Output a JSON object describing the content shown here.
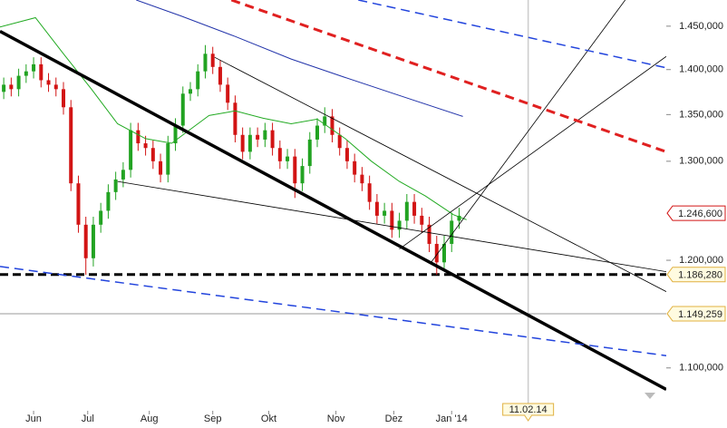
{
  "chart_data": {
    "type": "candlestick",
    "log_scale": true,
    "xlim": [
      -18,
      339
    ],
    "ylim": [
      1061,
      1481
    ],
    "xticks": [
      {
        "value": 0,
        "label": "Jun"
      },
      {
        "value": 29,
        "label": "Jul"
      },
      {
        "value": 62,
        "label": "Aug"
      },
      {
        "value": 96,
        "label": "Sep"
      },
      {
        "value": 126,
        "label": "Okt"
      },
      {
        "value": 162,
        "label": "Nov"
      },
      {
        "value": 193,
        "label": "Dez"
      },
      {
        "value": 224,
        "label": "Jan '14"
      }
    ],
    "yticks": [
      {
        "value": 1450,
        "label": "1.450,000"
      },
      {
        "value": 1400,
        "label": "1.400,000"
      },
      {
        "value": 1350,
        "label": "1.350,000"
      },
      {
        "value": 1300,
        "label": "1.300,000"
      },
      {
        "value": 1200,
        "label": "1.200,000"
      },
      {
        "value": 1100,
        "label": "1.100,000"
      }
    ],
    "up_color": "#22a322",
    "down_color": "#d21414",
    "x": [
      -16,
      -12,
      -8,
      -4,
      0,
      4,
      8,
      12,
      16,
      20,
      24,
      28,
      32,
      36,
      40,
      44,
      48,
      52,
      56,
      60,
      64,
      68,
      72,
      76,
      80,
      84,
      88,
      92,
      96,
      100,
      104,
      108,
      112,
      116,
      120,
      124,
      128,
      132,
      136,
      140,
      144,
      148,
      152,
      156,
      160,
      164,
      168,
      172,
      176,
      180,
      184,
      188,
      192,
      196,
      200,
      204,
      208,
      212,
      216,
      220,
      224,
      228
    ],
    "open": [
      1375,
      1383,
      1378,
      1393,
      1398,
      1406,
      1388,
      1383,
      1378,
      1358,
      1277,
      1235,
      1202,
      1235,
      1249,
      1268,
      1281,
      1291,
      1333,
      1319,
      1314,
      1300,
      1286,
      1319,
      1338,
      1373,
      1378,
      1398,
      1418,
      1403,
      1383,
      1363,
      1328,
      1310,
      1328,
      1323,
      1333,
      1314,
      1300,
      1305,
      1277,
      1295,
      1323,
      1338,
      1348,
      1328,
      1314,
      1300,
      1286,
      1277,
      1258,
      1244,
      1249,
      1230,
      1239,
      1258,
      1244,
      1235,
      1216,
      1198,
      1216,
      1239
    ],
    "high": [
      1391,
      1391,
      1401,
      1406,
      1414,
      1414,
      1396,
      1391,
      1386,
      1366,
      1285,
      1243,
      1243,
      1257,
      1276,
      1289,
      1299,
      1341,
      1341,
      1327,
      1322,
      1308,
      1327,
      1346,
      1381,
      1386,
      1406,
      1428,
      1426,
      1411,
      1391,
      1371,
      1336,
      1336,
      1336,
      1341,
      1341,
      1322,
      1313,
      1313,
      1303,
      1331,
      1346,
      1358,
      1356,
      1336,
      1322,
      1308,
      1294,
      1285,
      1266,
      1257,
      1257,
      1247,
      1266,
      1266,
      1252,
      1243,
      1224,
      1224,
      1247,
      1252
    ],
    "low": [
      1367,
      1370,
      1370,
      1385,
      1390,
      1380,
      1375,
      1370,
      1350,
      1269,
      1227,
      1186,
      1194,
      1227,
      1241,
      1260,
      1273,
      1283,
      1311,
      1306,
      1292,
      1278,
      1278,
      1311,
      1330,
      1365,
      1370,
      1390,
      1395,
      1375,
      1355,
      1320,
      1302,
      1302,
      1315,
      1315,
      1306,
      1292,
      1292,
      1262,
      1269,
      1287,
      1315,
      1330,
      1320,
      1306,
      1292,
      1278,
      1269,
      1250,
      1236,
      1236,
      1222,
      1222,
      1231,
      1236,
      1227,
      1208,
      1186,
      1190,
      1208,
      1231
    ],
    "close": [
      1383,
      1378,
      1393,
      1398,
      1406,
      1388,
      1383,
      1378,
      1358,
      1277,
      1235,
      1202,
      1235,
      1249,
      1268,
      1281,
      1291,
      1333,
      1319,
      1314,
      1300,
      1286,
      1319,
      1338,
      1373,
      1378,
      1398,
      1418,
      1403,
      1383,
      1363,
      1328,
      1310,
      1328,
      1323,
      1333,
      1314,
      1300,
      1305,
      1277,
      1295,
      1323,
      1338,
      1348,
      1328,
      1314,
      1300,
      1286,
      1277,
      1258,
      1244,
      1249,
      1230,
      1239,
      1258,
      1244,
      1235,
      1216,
      1198,
      1216,
      1239,
      1244
    ],
    "overlays": [
      {
        "x": [
          55,
          79,
          108,
          138,
          167,
          196,
          230
        ],
        "values": [
          1481,
          1462,
          1438,
          1412,
          1391,
          1371,
          1348
        ],
        "color": "#2233aa",
        "width": 1,
        "dashed": false
      },
      {
        "x": [
          -18,
          1,
          16,
          31,
          45,
          60,
          74,
          84,
          94,
          108,
          123,
          138,
          152,
          167,
          181,
          196,
          210,
          225,
          232
        ],
        "values": [
          1449,
          1460,
          1418,
          1378,
          1340,
          1324,
          1319,
          1334,
          1349,
          1354,
          1346,
          1340,
          1345,
          1324,
          1300,
          1279,
          1264,
          1245,
          1240
        ],
        "color": "#22aa22",
        "width": 1,
        "dashed": false
      },
      {
        "x": [
          -18,
          339
        ],
        "values": [
          1444,
          1081
        ],
        "color": "#000000",
        "width": 3.5,
        "dashed": false
      },
      {
        "x": [
          97,
          339
        ],
        "values": [
          1414,
          1170
        ],
        "color": "#000000",
        "width": 0.8,
        "dashed": false
      },
      {
        "x": [
          45,
          339
        ],
        "values": [
          1279,
          1189
        ],
        "color": "#000000",
        "width": 0.8,
        "dashed": false
      },
      {
        "x": [
          196,
          339
        ],
        "values": [
          1211,
          1415
        ],
        "color": "#000000",
        "width": 0.8,
        "dashed": false
      },
      {
        "x": [
          213,
          317
        ],
        "values": [
          1198,
          1481
        ],
        "color": "#000000",
        "width": 0.8,
        "dashed": false
      },
      {
        "x": [
          106,
          339
        ],
        "values": [
          1481,
          1310
        ],
        "color": "#e02020",
        "width": 3,
        "dashed": true
      },
      {
        "x": [
          174,
          339
        ],
        "values": [
          1481,
          1402
        ],
        "color": "#2244dd",
        "width": 1.5,
        "dashed": true
      },
      {
        "x": [
          -18,
          339
        ],
        "values": [
          1194,
          1111
        ],
        "color": "#2244dd",
        "width": 1.5,
        "dashed": true
      }
    ],
    "levels": [
      {
        "value": 1246.6,
        "label": "1.246,600",
        "color": "#d21414",
        "line": false
      },
      {
        "value": 1186.28,
        "label": "1.186,280",
        "color": "#000000",
        "line": true,
        "dashed": true
      },
      {
        "value": 1149.259,
        "label": "1.149,259",
        "color": "#999999",
        "line": true,
        "dashed": false
      }
    ],
    "date_marker": {
      "value": 265,
      "label": "11.02.14"
    }
  }
}
